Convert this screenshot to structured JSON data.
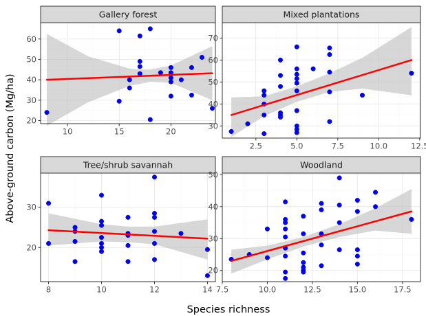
{
  "chart_data": {
    "type": "scatter",
    "xlabel": "Species richness",
    "ylabel": "Above-ground carbon (Mg/ha)",
    "grid": true,
    "colors": {
      "points": "#0000ff",
      "fit_line": "#ff0000",
      "ribbon": "#bdbdbd",
      "strip": "#d9d9d9"
    },
    "panels": [
      {
        "title": "Gallery forest",
        "xlim": [
          7.4,
          24.3
        ],
        "ylim": [
          18.5,
          68.0
        ],
        "xticks": [
          10,
          15,
          20
        ],
        "yticks": [
          20,
          30,
          40,
          50,
          60
        ],
        "x": [
          8,
          15,
          15,
          16,
          16,
          17,
          17,
          17,
          17,
          18,
          18,
          19,
          20,
          20,
          20,
          20,
          20,
          21,
          22,
          22,
          23,
          24
        ],
        "y": [
          24,
          64,
          29.5,
          36,
          40,
          61.5,
          49,
          46.5,
          43,
          65,
          20.5,
          43.5,
          46,
          43.5,
          41,
          39,
          32,
          40,
          46,
          32.5,
          51,
          26
        ],
        "fit": {
          "x0": 8,
          "y0": 40,
          "x1": 24,
          "y1": 43.2
        },
        "ci_upper": [
          [
            8,
            62.5
          ],
          [
            12,
            51.5
          ],
          [
            16,
            45.5
          ],
          [
            17,
            45
          ],
          [
            18,
            45
          ],
          [
            20,
            47
          ],
          [
            24,
            56.5
          ]
        ],
        "ci_lower": [
          [
            8,
            17.5
          ],
          [
            12,
            29
          ],
          [
            16,
            37
          ],
          [
            17,
            38
          ],
          [
            18,
            39
          ],
          [
            20,
            38.5
          ],
          [
            24,
            30
          ]
        ]
      },
      {
        "title": "Mixed plantations",
        "xlim": [
          0.45,
          12.55
        ],
        "ylim": [
          24.5,
          77.0
        ],
        "xticks": [
          2.5,
          5.0,
          7.5,
          10.0,
          12.5
        ],
        "yticks": [
          30,
          40,
          50,
          60,
          70
        ],
        "x": [
          1,
          2,
          3,
          3,
          3,
          3,
          3,
          4,
          4,
          4,
          4,
          4,
          4,
          5,
          5,
          5,
          5,
          5,
          5,
          5,
          5,
          5,
          5,
          6,
          7,
          7,
          7,
          7,
          7,
          9,
          12
        ],
        "y": [
          27.5,
          31,
          46,
          44,
          40,
          35,
          26.5,
          60,
          53,
          48,
          36,
          35,
          34,
          66,
          56,
          53.5,
          51.5,
          49.5,
          46,
          37,
          30,
          28.5,
          27,
          56,
          65.5,
          62.5,
          54.5,
          45.5,
          32,
          44,
          54
        ],
        "fit": {
          "x0": 1,
          "y0": 35,
          "x1": 12,
          "y1": 60
        },
        "ci_upper": [
          [
            1,
            43
          ],
          [
            3,
            43.5
          ],
          [
            5,
            48
          ],
          [
            7,
            54
          ],
          [
            9,
            61
          ],
          [
            12,
            75
          ]
        ],
        "ci_lower": [
          [
            1,
            25
          ],
          [
            3,
            34.5
          ],
          [
            5,
            41
          ],
          [
            7,
            45.5
          ],
          [
            9,
            47
          ],
          [
            12,
            44
          ]
        ]
      },
      {
        "title": "Tree/shrub savannah",
        "xlim": [
          7.7,
          14.3
        ],
        "ylim": [
          11.5,
          38.5
        ],
        "xticks": [
          8,
          10,
          12,
          14
        ],
        "yticks": [
          20,
          30
        ],
        "x": [
          8,
          8,
          9,
          9,
          9,
          9,
          10,
          10,
          10,
          10,
          10,
          10,
          10,
          11,
          11,
          11,
          11,
          11,
          12,
          12,
          12,
          12,
          12,
          12,
          13,
          14,
          14
        ],
        "y": [
          31,
          21,
          25,
          24,
          21.5,
          16.5,
          33,
          26.5,
          25.5,
          22.5,
          21,
          20,
          19,
          27.5,
          23.5,
          23,
          20.5,
          16.5,
          37.5,
          28.5,
          27.5,
          24,
          21,
          17,
          23.5,
          19.5,
          13
        ],
        "fit": {
          "x0": 8,
          "y0": 24.3,
          "x1": 14,
          "y1": 22.2
        },
        "ci_upper": [
          [
            8,
            28.5
          ],
          [
            10,
            25.8
          ],
          [
            11,
            25.2
          ],
          [
            12,
            25.2
          ],
          [
            14,
            27
          ]
        ],
        "ci_lower": [
          [
            8,
            20.5
          ],
          [
            10,
            21.5
          ],
          [
            11,
            21.3
          ],
          [
            12,
            20.8
          ],
          [
            14,
            17
          ]
        ]
      },
      {
        "title": "Woodland",
        "xlim": [
          7.5,
          18.5
        ],
        "ylim": [
          16.5,
          50.5
        ],
        "xticks": [
          7.5,
          10.0,
          12.5,
          15.0,
          17.5
        ],
        "yticks": [
          20,
          30,
          40,
          50
        ],
        "x": [
          8,
          9,
          10,
          10,
          11,
          11,
          11,
          11,
          11,
          11,
          11,
          11,
          11,
          12,
          12,
          12,
          12,
          12,
          12,
          12,
          13,
          13,
          13,
          13,
          13,
          14,
          14,
          14,
          14,
          15,
          15,
          15,
          15,
          15,
          16,
          16,
          18
        ],
        "y": [
          23.5,
          25,
          33,
          24,
          41.5,
          36,
          35,
          33,
          30.5,
          27,
          24.5,
          19.5,
          17.5,
          37,
          31.5,
          25.5,
          22.5,
          21,
          20,
          19.5,
          41,
          39,
          31.5,
          28,
          21.5,
          49,
          40.5,
          35,
          26.5,
          42,
          38.5,
          26.5,
          24.5,
          22,
          44.5,
          40,
          36
        ],
        "fit": {
          "x0": 8,
          "y0": 23,
          "x1": 18,
          "y1": 38.5
        },
        "ci_upper": [
          [
            8,
            26.5
          ],
          [
            10,
            27.8
          ],
          [
            12,
            30.5
          ],
          [
            14,
            34.5
          ],
          [
            16,
            39.5
          ],
          [
            18,
            45.5
          ]
        ],
        "ci_lower": [
          [
            8,
            19
          ],
          [
            10,
            23.5
          ],
          [
            12,
            27.5
          ],
          [
            14,
            30.5
          ],
          [
            16,
            32.5
          ],
          [
            18,
            31.5
          ]
        ]
      }
    ]
  }
}
